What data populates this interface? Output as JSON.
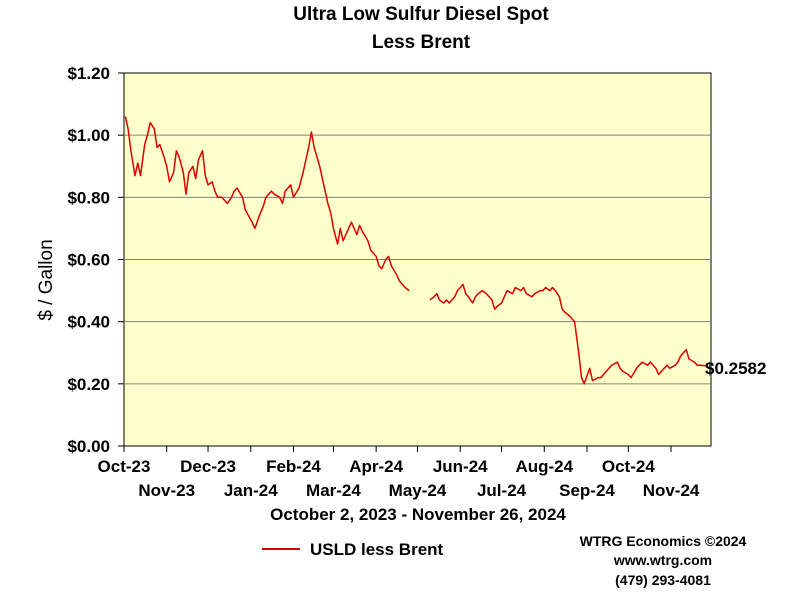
{
  "chart_data": {
    "type": "line",
    "title": [
      "Ultra Low Sulfur Diesel Spot",
      "Less Brent"
    ],
    "ylabel": "$ / Gallon",
    "xlabel": "October 2, 2023 - November 26, 2024",
    "ylim": [
      0,
      1.2
    ],
    "yticks": [
      0,
      0.2,
      0.4,
      0.6,
      0.8,
      1.0,
      1.2
    ],
    "ytick_labels": [
      "$0.00",
      "$0.20",
      "$0.40",
      "$0.60",
      "$0.80",
      "$1.00",
      "$1.20"
    ],
    "xlim": [
      "2023-10-01",
      "2024-11-30"
    ],
    "xtick_dates": [
      "2023-10-01",
      "2023-11-01",
      "2023-12-01",
      "2024-01-01",
      "2024-02-01",
      "2024-03-01",
      "2024-04-01",
      "2024-05-01",
      "2024-06-01",
      "2024-07-01",
      "2024-08-01",
      "2024-09-01",
      "2024-10-01",
      "2024-11-01"
    ],
    "xtick_labels": [
      "Oct-23",
      "Nov-23",
      "Dec-23",
      "Jan-24",
      "Feb-24",
      "Mar-24",
      "Apr-24",
      "May-24",
      "Jun-24",
      "Jul-24",
      "Aug-24",
      "Sep-24",
      "Oct-24",
      "Nov-24"
    ],
    "grid": "horizontal",
    "background": "#ffffcc",
    "legend_position": "bottom-left",
    "last_value_label": "$0.2582",
    "series": [
      {
        "name": "USLD less Brent",
        "color": "#dd0000",
        "segments": [
          [
            [
              "2023-10-02",
              1.06
            ],
            [
              "2023-10-04",
              1.02
            ],
            [
              "2023-10-06",
              0.95
            ],
            [
              "2023-10-09",
              0.87
            ],
            [
              "2023-10-11",
              0.91
            ],
            [
              "2023-10-13",
              0.87
            ],
            [
              "2023-10-16",
              0.97
            ],
            [
              "2023-10-18",
              1.0
            ],
            [
              "2023-10-20",
              1.04
            ],
            [
              "2023-10-23",
              1.02
            ],
            [
              "2023-10-25",
              0.96
            ],
            [
              "2023-10-27",
              0.97
            ],
            [
              "2023-10-30",
              0.93
            ],
            [
              "2023-11-01",
              0.9
            ],
            [
              "2023-11-03",
              0.85
            ],
            [
              "2023-11-06",
              0.88
            ],
            [
              "2023-11-08",
              0.95
            ],
            [
              "2023-11-10",
              0.93
            ],
            [
              "2023-11-13",
              0.88
            ],
            [
              "2023-11-15",
              0.81
            ],
            [
              "2023-11-17",
              0.88
            ],
            [
              "2023-11-20",
              0.9
            ],
            [
              "2023-11-22",
              0.86
            ],
            [
              "2023-11-24",
              0.92
            ],
            [
              "2023-11-27",
              0.95
            ],
            [
              "2023-11-29",
              0.87
            ],
            [
              "2023-12-01",
              0.84
            ],
            [
              "2023-12-04",
              0.85
            ],
            [
              "2023-12-06",
              0.82
            ],
            [
              "2023-12-08",
              0.8
            ],
            [
              "2023-12-11",
              0.8
            ],
            [
              "2023-12-13",
              0.79
            ],
            [
              "2023-12-15",
              0.78
            ],
            [
              "2023-12-18",
              0.8
            ],
            [
              "2023-12-20",
              0.82
            ],
            [
              "2023-12-22",
              0.83
            ],
            [
              "2023-12-26",
              0.8
            ],
            [
              "2023-12-28",
              0.76
            ],
            [
              "2024-01-02",
              0.72
            ],
            [
              "2024-01-04",
              0.7
            ],
            [
              "2024-01-08",
              0.75
            ],
            [
              "2024-01-10",
              0.77
            ],
            [
              "2024-01-12",
              0.8
            ],
            [
              "2024-01-16",
              0.82
            ],
            [
              "2024-01-18",
              0.81
            ],
            [
              "2024-01-22",
              0.8
            ],
            [
              "2024-01-24",
              0.78
            ],
            [
              "2024-01-26",
              0.82
            ],
            [
              "2024-01-30",
              0.84
            ],
            [
              "2024-02-01",
              0.8
            ],
            [
              "2024-02-05",
              0.83
            ],
            [
              "2024-02-08",
              0.88
            ],
            [
              "2024-02-12",
              0.96
            ],
            [
              "2024-02-14",
              1.01
            ],
            [
              "2024-02-16",
              0.96
            ],
            [
              "2024-02-20",
              0.9
            ],
            [
              "2024-02-22",
              0.86
            ],
            [
              "2024-02-26",
              0.78
            ],
            [
              "2024-02-28",
              0.75
            ],
            [
              "2024-03-01",
              0.7
            ],
            [
              "2024-03-04",
              0.65
            ],
            [
              "2024-03-06",
              0.7
            ],
            [
              "2024-03-08",
              0.66
            ],
            [
              "2024-03-12",
              0.7
            ],
            [
              "2024-03-14",
              0.72
            ],
            [
              "2024-03-18",
              0.68
            ],
            [
              "2024-03-20",
              0.71
            ],
            [
              "2024-03-22",
              0.69
            ],
            [
              "2024-03-26",
              0.66
            ],
            [
              "2024-03-28",
              0.63
            ],
            [
              "2024-04-01",
              0.61
            ],
            [
              "2024-04-03",
              0.58
            ],
            [
              "2024-04-05",
              0.57
            ],
            [
              "2024-04-08",
              0.6
            ],
            [
              "2024-04-10",
              0.61
            ],
            [
              "2024-04-12",
              0.58
            ],
            [
              "2024-04-16",
              0.55
            ],
            [
              "2024-04-18",
              0.53
            ],
            [
              "2024-04-22",
              0.51
            ],
            [
              "2024-04-25",
              0.5
            ]
          ],
          [
            [
              "2024-05-10",
              0.47
            ],
            [
              "2024-05-13",
              0.48
            ],
            [
              "2024-05-15",
              0.49
            ],
            [
              "2024-05-17",
              0.47
            ],
            [
              "2024-05-20",
              0.46
            ],
            [
              "2024-05-22",
              0.47
            ],
            [
              "2024-05-24",
              0.46
            ],
            [
              "2024-05-28",
              0.48
            ],
            [
              "2024-05-30",
              0.5
            ],
            [
              "2024-06-03",
              0.52
            ],
            [
              "2024-06-05",
              0.49
            ],
            [
              "2024-06-07",
              0.48
            ],
            [
              "2024-06-10",
              0.46
            ],
            [
              "2024-06-12",
              0.48
            ],
            [
              "2024-06-14",
              0.49
            ],
            [
              "2024-06-17",
              0.5
            ],
            [
              "2024-06-20",
              0.49
            ],
            [
              "2024-06-24",
              0.47
            ],
            [
              "2024-06-26",
              0.44
            ],
            [
              "2024-06-28",
              0.45
            ],
            [
              "2024-07-01",
              0.46
            ],
            [
              "2024-07-03",
              0.48
            ],
            [
              "2024-07-05",
              0.5
            ],
            [
              "2024-07-09",
              0.49
            ],
            [
              "2024-07-11",
              0.51
            ],
            [
              "2024-07-15",
              0.5
            ],
            [
              "2024-07-17",
              0.51
            ],
            [
              "2024-07-19",
              0.49
            ],
            [
              "2024-07-23",
              0.48
            ],
            [
              "2024-07-25",
              0.49
            ],
            [
              "2024-07-29",
              0.5
            ],
            [
              "2024-07-31",
              0.5
            ],
            [
              "2024-08-02",
              0.51
            ],
            [
              "2024-08-05",
              0.5
            ],
            [
              "2024-08-07",
              0.51
            ],
            [
              "2024-08-09",
              0.5
            ],
            [
              "2024-08-12",
              0.48
            ],
            [
              "2024-08-14",
              0.44
            ],
            [
              "2024-08-16",
              0.43
            ],
            [
              "2024-08-19",
              0.42
            ],
            [
              "2024-08-21",
              0.41
            ],
            [
              "2024-08-23",
              0.4
            ],
            [
              "2024-08-26",
              0.3
            ],
            [
              "2024-08-28",
              0.22
            ],
            [
              "2024-08-30",
              0.2
            ],
            [
              "2024-09-03",
              0.25
            ],
            [
              "2024-09-05",
              0.21
            ],
            [
              "2024-09-09",
              0.22
            ],
            [
              "2024-09-11",
              0.22
            ],
            [
              "2024-09-13",
              0.23
            ],
            [
              "2024-09-17",
              0.25
            ],
            [
              "2024-09-19",
              0.26
            ],
            [
              "2024-09-23",
              0.27
            ],
            [
              "2024-09-25",
              0.25
            ],
            [
              "2024-09-27",
              0.24
            ],
            [
              "2024-10-01",
              0.23
            ],
            [
              "2024-10-03",
              0.22
            ],
            [
              "2024-10-07",
              0.25
            ],
            [
              "2024-10-09",
              0.26
            ],
            [
              "2024-10-11",
              0.27
            ],
            [
              "2024-10-15",
              0.26
            ],
            [
              "2024-10-17",
              0.27
            ],
            [
              "2024-10-21",
              0.25
            ],
            [
              "2024-10-23",
              0.23
            ],
            [
              "2024-10-25",
              0.24
            ],
            [
              "2024-10-29",
              0.26
            ],
            [
              "2024-10-31",
              0.25
            ],
            [
              "2024-11-04",
              0.26
            ],
            [
              "2024-11-06",
              0.27
            ],
            [
              "2024-11-08",
              0.29
            ],
            [
              "2024-11-12",
              0.31
            ],
            [
              "2024-11-14",
              0.28
            ],
            [
              "2024-11-18",
              0.27
            ],
            [
              "2024-11-20",
              0.26
            ],
            [
              "2024-11-22",
              0.26
            ],
            [
              "2024-11-26",
              0.2582
            ]
          ]
        ]
      }
    ]
  },
  "credits": {
    "company": "WTRG Economics ©2024",
    "website": "www.wtrg.com",
    "phone": "(479) 293-4081"
  }
}
